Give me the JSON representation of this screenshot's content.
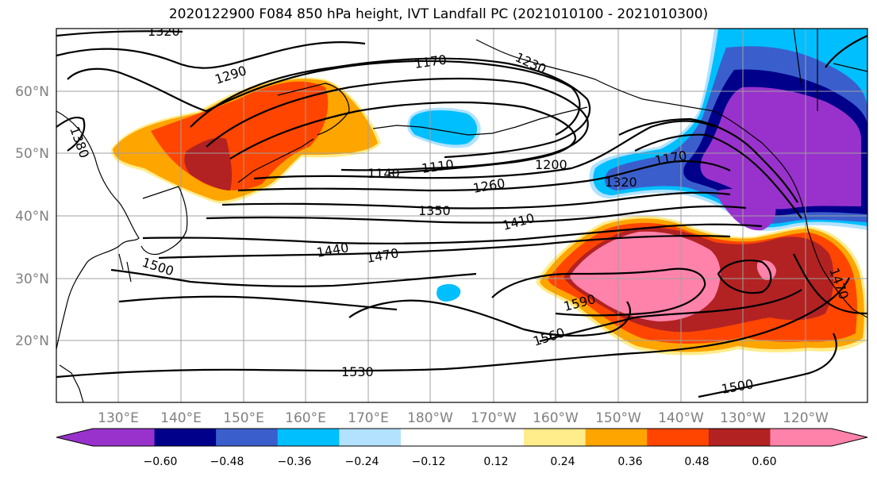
{
  "title": "2020122900 F084 850 hPa height, IVT Landfall PC (2021010100 - 2021010300)",
  "lat_labels": [
    "60°N",
    "50°N",
    "40°N",
    "30°N",
    "20°N"
  ],
  "lon_labels": [
    "130°E",
    "140°E",
    "150°E",
    "160°E",
    "170°E",
    "180°W",
    "170°W",
    "160°W",
    "150°W",
    "140°W",
    "130°W",
    "120°W"
  ],
  "colorbar": {
    "colors": [
      "#9932CC",
      "#00008B",
      "#3A5FCD",
      "#00BFFF",
      "#B2E2FF",
      "#FFFFFF",
      "#FFFFFF",
      "#FFEC8B",
      "#FFA500",
      "#FF4500",
      "#B22222",
      "#FF82AB"
    ],
    "ticks": [
      "−0.60",
      "−0.48",
      "−0.36",
      "−0.24",
      "−0.12",
      "0.12",
      "0.24",
      "0.36",
      "0.48",
      "0.60"
    ]
  },
  "contour_labels": [
    "1320",
    "1290",
    "1170",
    "1230",
    "1380",
    "1140",
    "1110",
    "1200",
    "1170",
    "1320",
    "1260",
    "1350",
    "1410",
    "1440",
    "1470",
    "1500",
    "1590",
    "1560",
    "1530",
    "1500",
    "1470"
  ]
}
